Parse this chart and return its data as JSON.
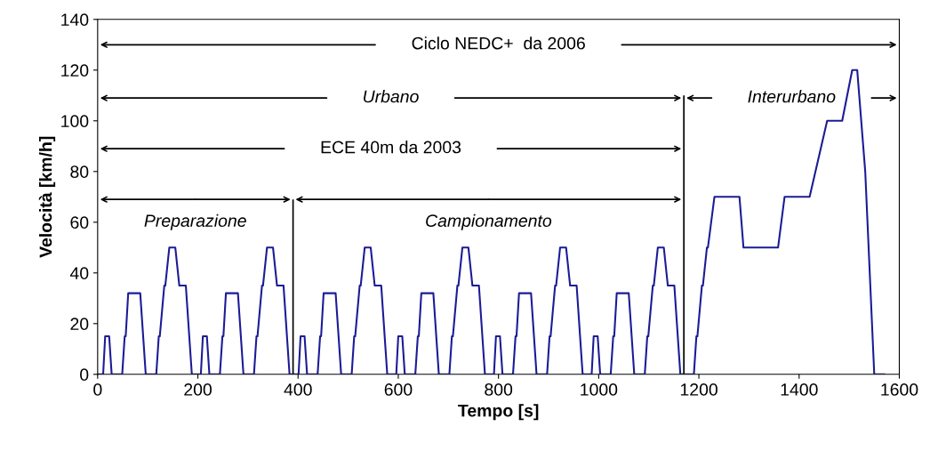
{
  "chart_data": {
    "type": "line",
    "xlabel": "Tempo [s]",
    "ylabel": "Velocità [km/h]",
    "x": [
      0,
      11,
      15,
      23,
      28,
      49,
      54,
      56,
      61,
      85,
      96,
      117,
      122,
      124,
      133,
      135,
      143,
      155,
      163,
      176,
      188,
      195,
      206,
      210,
      218,
      223,
      244,
      249,
      251,
      256,
      280,
      291,
      312,
      317,
      319,
      328,
      330,
      338,
      350,
      358,
      371,
      383,
      390,
      401,
      405,
      413,
      418,
      439,
      444,
      446,
      451,
      475,
      486,
      507,
      512,
      514,
      523,
      525,
      533,
      545,
      553,
      566,
      578,
      585,
      596,
      600,
      608,
      613,
      634,
      639,
      641,
      646,
      670,
      681,
      702,
      707,
      709,
      718,
      720,
      728,
      740,
      748,
      761,
      773,
      780,
      791,
      795,
      803,
      808,
      829,
      834,
      836,
      841,
      865,
      876,
      897,
      902,
      904,
      913,
      915,
      923,
      935,
      943,
      956,
      968,
      975,
      986,
      990,
      998,
      1003,
      1024,
      1029,
      1031,
      1036,
      1060,
      1071,
      1092,
      1097,
      1099,
      1108,
      1110,
      1118,
      1130,
      1138,
      1151,
      1163,
      1170,
      1190,
      1195,
      1197,
      1206,
      1208,
      1216,
      1218,
      1231,
      1281,
      1289,
      1358,
      1371,
      1421,
      1456,
      1486,
      1506,
      1516,
      1532,
      1550,
      1570
    ],
    "series": [
      {
        "color": "#1c1c96",
        "values": [
          0,
          0,
          15,
          15,
          0,
          0,
          15,
          15,
          32,
          32,
          0,
          0,
          15,
          15,
          35,
          35,
          50,
          50,
          35,
          35,
          0,
          0,
          0,
          15,
          15,
          0,
          0,
          15,
          15,
          32,
          32,
          0,
          0,
          15,
          15,
          35,
          35,
          50,
          50,
          35,
          35,
          0,
          0,
          0,
          15,
          15,
          0,
          0,
          15,
          15,
          32,
          32,
          0,
          0,
          15,
          15,
          35,
          35,
          50,
          50,
          35,
          35,
          0,
          0,
          0,
          15,
          15,
          0,
          0,
          15,
          15,
          32,
          32,
          0,
          0,
          15,
          15,
          35,
          35,
          50,
          50,
          35,
          35,
          0,
          0,
          0,
          15,
          15,
          0,
          0,
          15,
          15,
          32,
          32,
          0,
          0,
          15,
          15,
          35,
          35,
          50,
          50,
          35,
          35,
          0,
          0,
          0,
          15,
          15,
          0,
          0,
          15,
          15,
          32,
          32,
          0,
          0,
          15,
          15,
          35,
          35,
          50,
          50,
          35,
          35,
          0,
          0,
          0,
          15,
          15,
          35,
          35,
          50,
          50,
          70,
          70,
          50,
          50,
          70,
          70,
          100,
          100,
          120,
          120,
          80,
          0,
          0
        ]
      }
    ],
    "xlim": [
      0,
      1600
    ],
    "xticks": [
      0,
      200,
      400,
      600,
      800,
      1000,
      1200,
      1400,
      1600
    ],
    "ylim": [
      0,
      140
    ],
    "yticks": [
      0,
      20,
      40,
      60,
      80,
      100,
      120,
      140
    ],
    "grid": false,
    "marker": "none",
    "line_style": "solid",
    "annotations": [
      "Ciclo NEDC+  da 2006",
      "Urbano",
      "Interurbano",
      "ECE 40m da 2003",
      "Preparazione",
      "Campionamento"
    ],
    "ref_lines": [
      {
        "axis": "x",
        "value": 390
      },
      {
        "axis": "x",
        "value": 1170
      }
    ]
  }
}
